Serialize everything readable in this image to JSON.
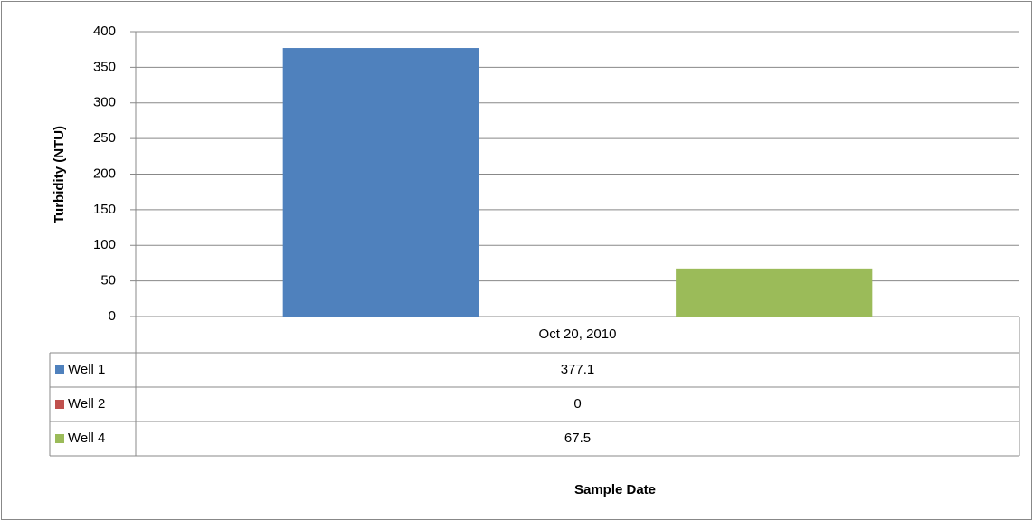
{
  "chart_data": {
    "type": "bar",
    "categories": [
      "Oct 20, 2010"
    ],
    "series": [
      {
        "name": "Well 1",
        "color": "#4f81bd",
        "values": [
          377.1
        ]
      },
      {
        "name": "Well 2",
        "color": "#c0504d",
        "values": [
          0
        ]
      },
      {
        "name": "Well 4",
        "color": "#9bbb59",
        "values": [
          67.5
        ]
      }
    ],
    "ylim": [
      0,
      400
    ],
    "yticks": [
      0,
      50,
      100,
      150,
      200,
      250,
      300,
      350,
      400
    ],
    "grid": true,
    "y_axis_label": "Turbidity (NTU)",
    "x_axis_label": "Sample Date"
  }
}
